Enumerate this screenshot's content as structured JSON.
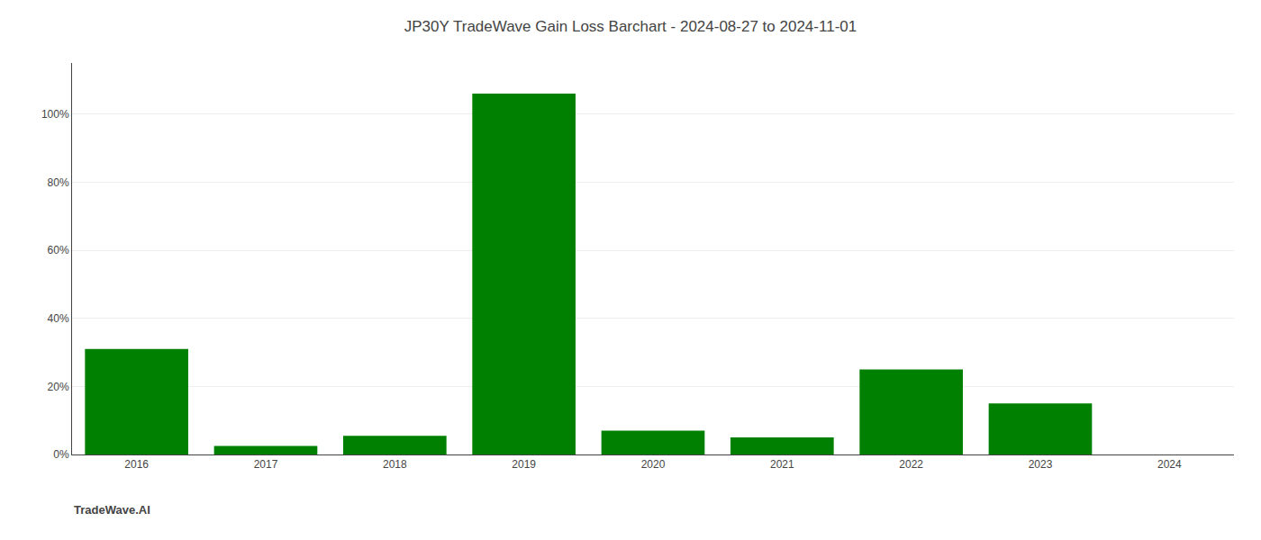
{
  "chart_data": {
    "type": "bar",
    "title": "JP30Y TradeWave Gain Loss Barchart - 2024-08-27 to 2024-11-01",
    "annotations": [
      "TradeWave.AI"
    ],
    "categories": [
      "2016",
      "2017",
      "2018",
      "2019",
      "2020",
      "2021",
      "2022",
      "2023",
      "2024"
    ],
    "values": [
      31.0,
      2.5,
      5.5,
      106.0,
      7.0,
      5.0,
      25.0,
      15.0,
      0.0
    ],
    "color": "#008000",
    "ylim": [
      0,
      115
    ],
    "yticks": [
      {
        "value": 0,
        "label": "0%"
      },
      {
        "value": 20,
        "label": "20%"
      },
      {
        "value": 40,
        "label": "40%"
      },
      {
        "value": 60,
        "label": "60%"
      },
      {
        "value": 80,
        "label": "80%"
      },
      {
        "value": 100,
        "label": "100%"
      }
    ],
    "grid": true
  }
}
